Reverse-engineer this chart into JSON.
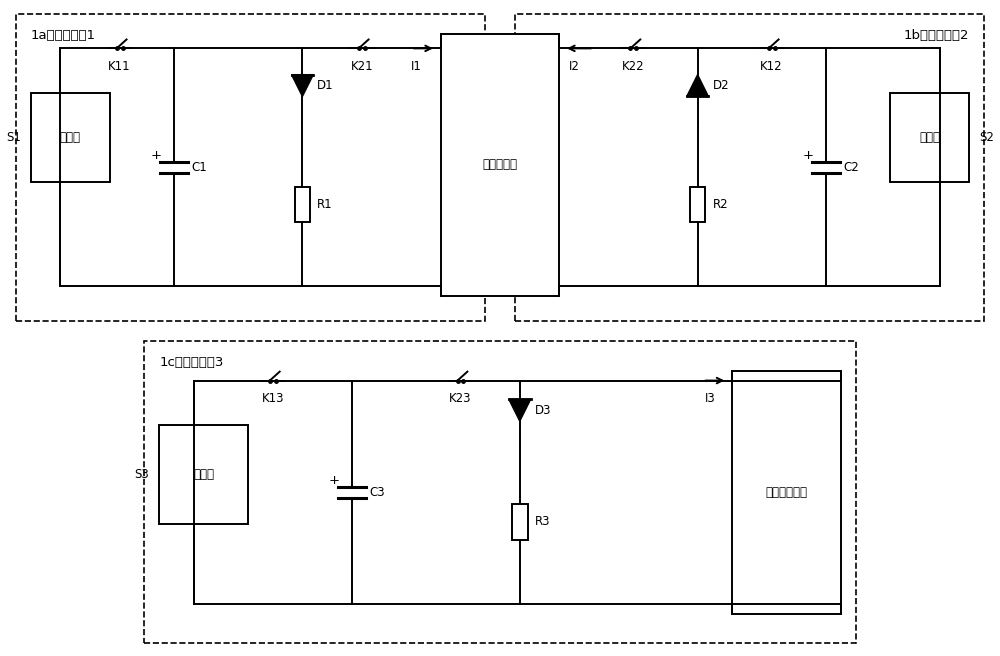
{
  "bg_color": "#ffffff",
  "line_color": "#000000",
  "box1a_label": "1a：脉冲电源1",
  "box1b_label": "1b：脉冲电源2",
  "box1c_label": "1c：脉冲电源3",
  "center_box_label": "钓合金坏料",
  "right_box_label": "亚姆霍兹线圈",
  "charger_label": "充电机",
  "S1": "S1",
  "S2": "S2",
  "S3": "S3",
  "K11": "K11",
  "K21": "K21",
  "I1": "I1",
  "K22": "K22",
  "K12": "K12",
  "I2": "I2",
  "K13": "K13",
  "K23": "K23",
  "I3": "I3",
  "C1": "C1",
  "C2": "C2",
  "C3": "C3",
  "D1": "D1",
  "D2": "D2",
  "D3": "D3",
  "R1": "R1",
  "R2": "R2",
  "R3": "R3",
  "figsize": [
    10.0,
    6.56
  ],
  "dpi": 100,
  "xlim": [
    0,
    100
  ],
  "ylim": [
    0,
    65.6
  ]
}
